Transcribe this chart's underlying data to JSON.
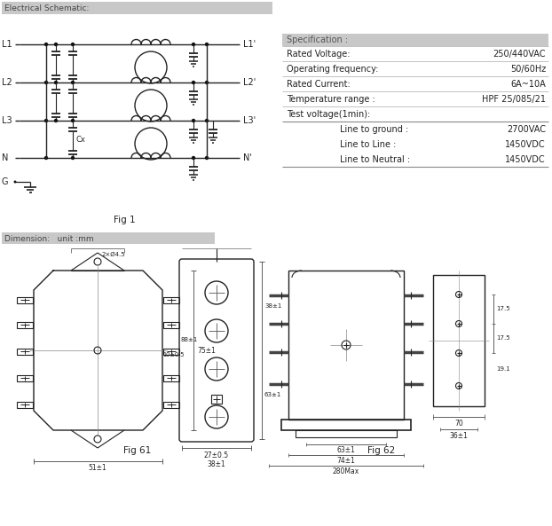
{
  "title_schematic": "Electrical Schematic:",
  "title_dimension": "Dimension:   unit :mm",
  "fig1_label": "Fig 1",
  "fig61_label": "Fig 61",
  "fig62_label": "Fig 62",
  "spec_header": "Specification :",
  "spec_rows": [
    [
      "Rated Voltage:",
      "250/440VAC"
    ],
    [
      "Operating frequency:",
      "50/60Hz"
    ],
    [
      "Rated Current:",
      "6A~10A"
    ],
    [
      "Temperature range :",
      "HPF 25/085/21"
    ],
    [
      "Test voltage(1min):",
      ""
    ]
  ],
  "spec_subrows": [
    [
      "Line to ground :",
      "2700VAC"
    ],
    [
      "Line to Line :",
      "1450VDC"
    ],
    [
      "Line to Neutral :",
      "1450VDC"
    ]
  ]
}
